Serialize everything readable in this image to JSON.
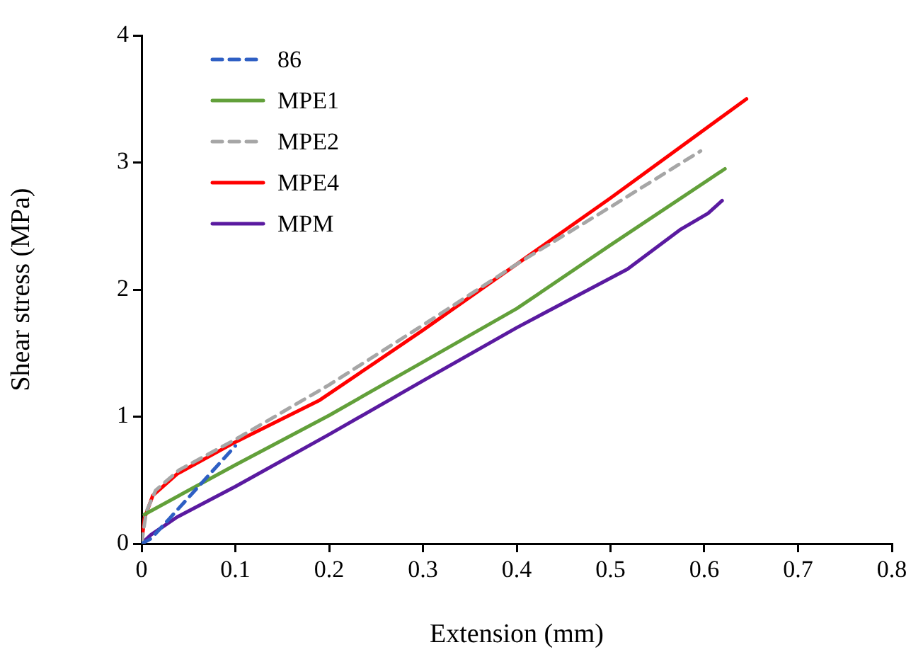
{
  "chart_data": {
    "type": "line",
    "xlabel": "Extension (mm)",
    "ylabel": "Shear stress (MPa)",
    "xlim": [
      0,
      0.8
    ],
    "xticks": [
      0,
      0.1,
      0.2,
      0.3,
      0.4,
      0.5,
      0.6,
      0.7,
      0.8
    ],
    "ylim": [
      0,
      4
    ],
    "yticks": [
      0,
      1,
      2,
      3,
      4
    ],
    "grid": false,
    "legend": "top left",
    "marker": "none",
    "series": [
      {
        "name": "86",
        "color": "#2e5fc4",
        "line_style": "dashed",
        "x": [
          0,
          0.01,
          0.03,
          0.1
        ],
        "values": [
          0,
          0.04,
          0.2,
          0.77
        ]
      },
      {
        "name": "MPE1",
        "color": "#62a03a",
        "x": [
          0.003,
          0.1,
          0.2,
          0.3,
          0.4,
          0.5,
          0.622
        ],
        "values": [
          0.23,
          0.62,
          1.01,
          1.43,
          1.85,
          2.35,
          2.95
        ]
      },
      {
        "name": "MPE2",
        "color": "#a6a6a6",
        "line_style": "dashed",
        "x": [
          0,
          0.005,
          0.015,
          0.04,
          0.1,
          0.2,
          0.3,
          0.4,
          0.5,
          0.596
        ],
        "values": [
          0,
          0.25,
          0.42,
          0.58,
          0.82,
          1.25,
          1.72,
          2.2,
          2.65,
          3.09
        ]
      },
      {
        "name": "MPE4",
        "color": "#ff0000",
        "x": [
          0,
          0.003,
          0.012,
          0.038,
          0.1,
          0.19,
          0.3,
          0.4,
          0.5,
          0.645
        ],
        "values": [
          0,
          0.2,
          0.38,
          0.55,
          0.8,
          1.13,
          1.68,
          2.2,
          2.72,
          3.5
        ]
      },
      {
        "name": "MPM",
        "color": "#5a1aa0",
        "x": [
          0,
          0.01,
          0.022,
          0.038,
          0.1,
          0.2,
          0.302,
          0.4,
          0.518,
          0.574,
          0.604,
          0.619
        ],
        "values": [
          0,
          0.07,
          0.13,
          0.21,
          0.45,
          0.86,
          1.29,
          1.7,
          2.16,
          2.47,
          2.6,
          2.7
        ]
      }
    ]
  }
}
